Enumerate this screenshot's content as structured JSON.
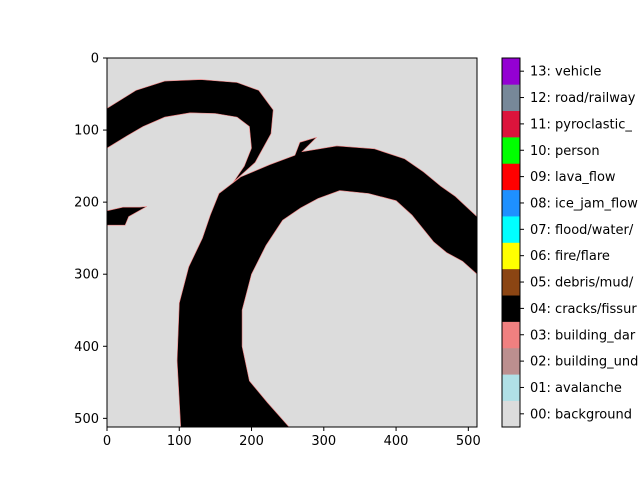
{
  "chart_data": {
    "type": "heatmap",
    "title": "",
    "xlabel": "",
    "ylabel": "",
    "xlim": [
      0,
      512
    ],
    "ylim": [
      512,
      0
    ],
    "x_ticks": [
      0,
      100,
      200,
      300,
      400,
      500
    ],
    "y_ticks": [
      0,
      100,
      200,
      300,
      400,
      500
    ],
    "grid": false,
    "image_colors": {
      "background": "#dcdcdc",
      "crack": "#000000",
      "edge": "#f08080"
    },
    "segmentation_regions": [
      {
        "class": "04: cracks/fissure",
        "polygon": [
          [
            0,
            70
          ],
          [
            40,
            45
          ],
          [
            80,
            32
          ],
          [
            130,
            30
          ],
          [
            180,
            34
          ],
          [
            210,
            45
          ],
          [
            230,
            72
          ],
          [
            227,
            105
          ],
          [
            205,
            145
          ],
          [
            175,
            172
          ],
          [
            190,
            150
          ],
          [
            200,
            125
          ],
          [
            197,
            95
          ],
          [
            180,
            82
          ],
          [
            150,
            77
          ],
          [
            115,
            76
          ],
          [
            80,
            82
          ],
          [
            50,
            95
          ],
          [
            28,
            108
          ],
          [
            0,
            125
          ]
        ]
      },
      {
        "class": "04: cracks/fissure",
        "polygon": [
          [
            0,
            212
          ],
          [
            22,
            207
          ],
          [
            45,
            207
          ],
          [
            55,
            206
          ],
          [
            30,
            220
          ],
          [
            25,
            232
          ],
          [
            0,
            232
          ]
        ]
      },
      {
        "class": "04: cracks/fissure",
        "polygon": [
          [
            102,
            512
          ],
          [
            97,
            420
          ],
          [
            100,
            340
          ],
          [
            113,
            290
          ],
          [
            132,
            250
          ],
          [
            143,
            218
          ],
          [
            155,
            188
          ],
          [
            185,
            165
          ],
          [
            225,
            148
          ],
          [
            260,
            135
          ],
          [
            267,
            117
          ],
          [
            290,
            110
          ],
          [
            270,
            130
          ],
          [
            318,
            122
          ],
          [
            370,
            126
          ],
          [
            412,
            140
          ],
          [
            438,
            158
          ],
          [
            462,
            178
          ],
          [
            482,
            192
          ],
          [
            512,
            220
          ],
          [
            512,
            300
          ],
          [
            492,
            282
          ],
          [
            470,
            270
          ],
          [
            452,
            255
          ],
          [
            422,
            218
          ],
          [
            400,
            198
          ],
          [
            362,
            188
          ],
          [
            322,
            184
          ],
          [
            292,
            195
          ],
          [
            268,
            208
          ],
          [
            243,
            225
          ],
          [
            220,
            260
          ],
          [
            200,
            300
          ],
          [
            187,
            350
          ],
          [
            187,
            400
          ],
          [
            197,
            448
          ],
          [
            222,
            478
          ],
          [
            252,
            512
          ]
        ]
      }
    ],
    "legend": {
      "placement": "right",
      "entries": [
        {
          "label": "00: background",
          "color": "#dcdcdc"
        },
        {
          "label": "01: avalanche",
          "color": "#b0e0e6"
        },
        {
          "label": "02: building_und",
          "color": "#bc8f8f"
        },
        {
          "label": "03: building_dar",
          "color": "#f08080"
        },
        {
          "label": "04: cracks/fissur",
          "color": "#000000"
        },
        {
          "label": "05: debris/mud/",
          "color": "#8b4513"
        },
        {
          "label": "06: fire/flare",
          "color": "#ffff00"
        },
        {
          "label": "07: flood/water/",
          "color": "#00ffff"
        },
        {
          "label": "08: ice_jam_flow",
          "color": "#1e90ff"
        },
        {
          "label": "09: lava_flow",
          "color": "#ff0000"
        },
        {
          "label": "10: person",
          "color": "#00ff00"
        },
        {
          "label": "11: pyroclastic_",
          "color": "#dc143c"
        },
        {
          "label": "12: road/railway",
          "color": "#778899"
        },
        {
          "label": "13: vehicle",
          "color": "#9400d3"
        }
      ]
    }
  }
}
